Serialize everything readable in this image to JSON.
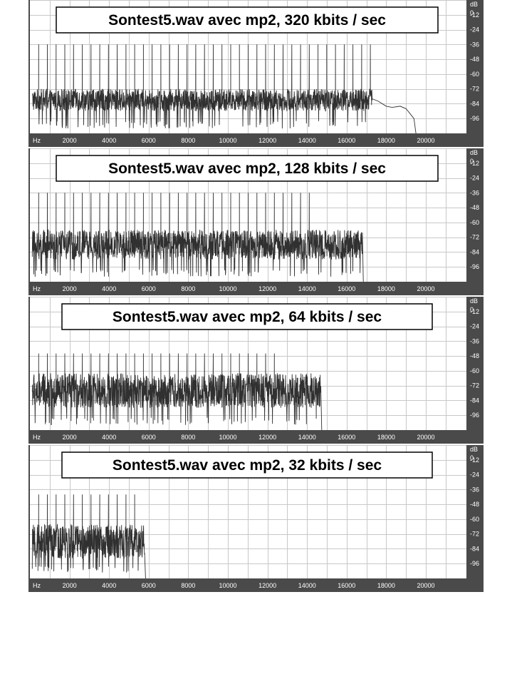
{
  "chart_data": [
    {
      "type": "line",
      "title": "Sontest5.wav avec mp2, 320 kbits / sec",
      "x_unit_label": "Hz",
      "y_unit_label": "dB",
      "x_ticks": [
        "2000",
        "4000",
        "6000",
        "8000",
        "10000",
        "12000",
        "14000",
        "16000",
        "18000",
        "20000"
      ],
      "y_ticks": [
        "0",
        "-12",
        "-24",
        "-36",
        "-48",
        "-60",
        "-72",
        "-84",
        "-96"
      ],
      "xlim": [
        0,
        22050
      ],
      "ylim": [
        -108,
        0
      ],
      "grid": true,
      "peak_spacing_hz": 441,
      "peak_level_db": -36,
      "noise_floor_db": [
        -90,
        -72
      ],
      "cutoff_hz": 17300,
      "tail": [
        [
          17300,
          -80
        ],
        [
          17600,
          -82
        ],
        [
          18000,
          -86
        ],
        [
          18300,
          -87
        ],
        [
          18700,
          -86
        ],
        [
          19000,
          -88
        ],
        [
          19200,
          -92
        ],
        [
          19400,
          -96
        ],
        [
          19500,
          -108
        ]
      ]
    },
    {
      "type": "line",
      "title": "Sontest5.wav avec mp2, 128 kbits / sec",
      "x_unit_label": "Hz",
      "y_unit_label": "dB",
      "x_ticks": [
        "2000",
        "4000",
        "6000",
        "8000",
        "10000",
        "12000",
        "14000",
        "16000",
        "18000",
        "20000"
      ],
      "y_ticks": [
        "0",
        "-12",
        "-24",
        "-36",
        "-48",
        "-60",
        "-72",
        "-84",
        "-96"
      ],
      "xlim": [
        0,
        22050
      ],
      "ylim": [
        -108,
        0
      ],
      "grid": true,
      "peak_spacing_hz": 441,
      "peak_level_db": -36,
      "noise_floor_db": [
        -90,
        -66
      ],
      "peak_cutoff_hz": 14500,
      "cutoff_hz": 16800,
      "tail": []
    },
    {
      "type": "line",
      "title": "Sontest5.wav avec mp2, 64 kbits / sec",
      "x_unit_label": "Hz",
      "y_unit_label": "dB",
      "x_ticks": [
        "2000",
        "4000",
        "6000",
        "8000",
        "10000",
        "12000",
        "14000",
        "16000",
        "18000",
        "20000"
      ],
      "y_ticks": [
        "0",
        "-12",
        "-24",
        "-36",
        "-48",
        "-60",
        "-72",
        "-84",
        "-96"
      ],
      "xlim": [
        0,
        22050
      ],
      "ylim": [
        -108,
        0
      ],
      "grid": true,
      "peak_spacing_hz": 441,
      "peak_level_db": -46,
      "noise_floor_db": [
        -90,
        -62
      ],
      "peak_cutoff_hz": 12500,
      "cutoff_hz": 14700,
      "tail": []
    },
    {
      "type": "line",
      "title": "Sontest5.wav avec mp2, 32 kbits / sec",
      "x_unit_label": "Hz",
      "y_unit_label": "dB",
      "x_ticks": [
        "2000",
        "4000",
        "6000",
        "8000",
        "10000",
        "12000",
        "14000",
        "16000",
        "18000",
        "20000"
      ],
      "y_ticks": [
        "0",
        "-12",
        "-24",
        "-36",
        "-48",
        "-60",
        "-72",
        "-84",
        "-96"
      ],
      "xlim": [
        0,
        22050
      ],
      "ylim": [
        -108,
        0
      ],
      "grid": true,
      "peak_spacing_hz": 441,
      "peak_level_db": -40,
      "noise_floor_db": [
        -92,
        -64
      ],
      "peak_cutoff_hz": 5500,
      "cutoff_hz": 5800,
      "tail": []
    }
  ],
  "colors": {
    "plot_background": "#ffffff",
    "grid": "#c8c8c8",
    "axis_band": "#4a4a4a",
    "trace": "#303030",
    "title_border": "#000000"
  }
}
